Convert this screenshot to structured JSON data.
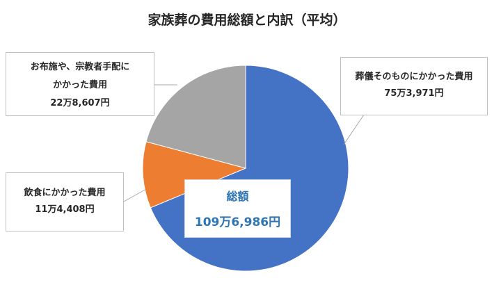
{
  "chart_data": {
    "type": "pie",
    "title": "家族葬の費用総額と内訳（平均）",
    "slices": [
      {
        "label": "葬儀そのものにかかった費用",
        "value_label": "75万3,971円",
        "value": 753971,
        "color": "#4472c4"
      },
      {
        "label": "飲食にかかった費用",
        "value_label": "11万4,408円",
        "value": 114408,
        "color": "#ed7d31"
      },
      {
        "label_lines": [
          "お布施や、宗教者手配に",
          "かかった費用"
        ],
        "value_label": "22万8,607円",
        "value": 228607,
        "color": "#a5a5a5"
      }
    ],
    "total": {
      "label": "総額",
      "value_label": "109万6,986円",
      "value": 1096986
    }
  }
}
